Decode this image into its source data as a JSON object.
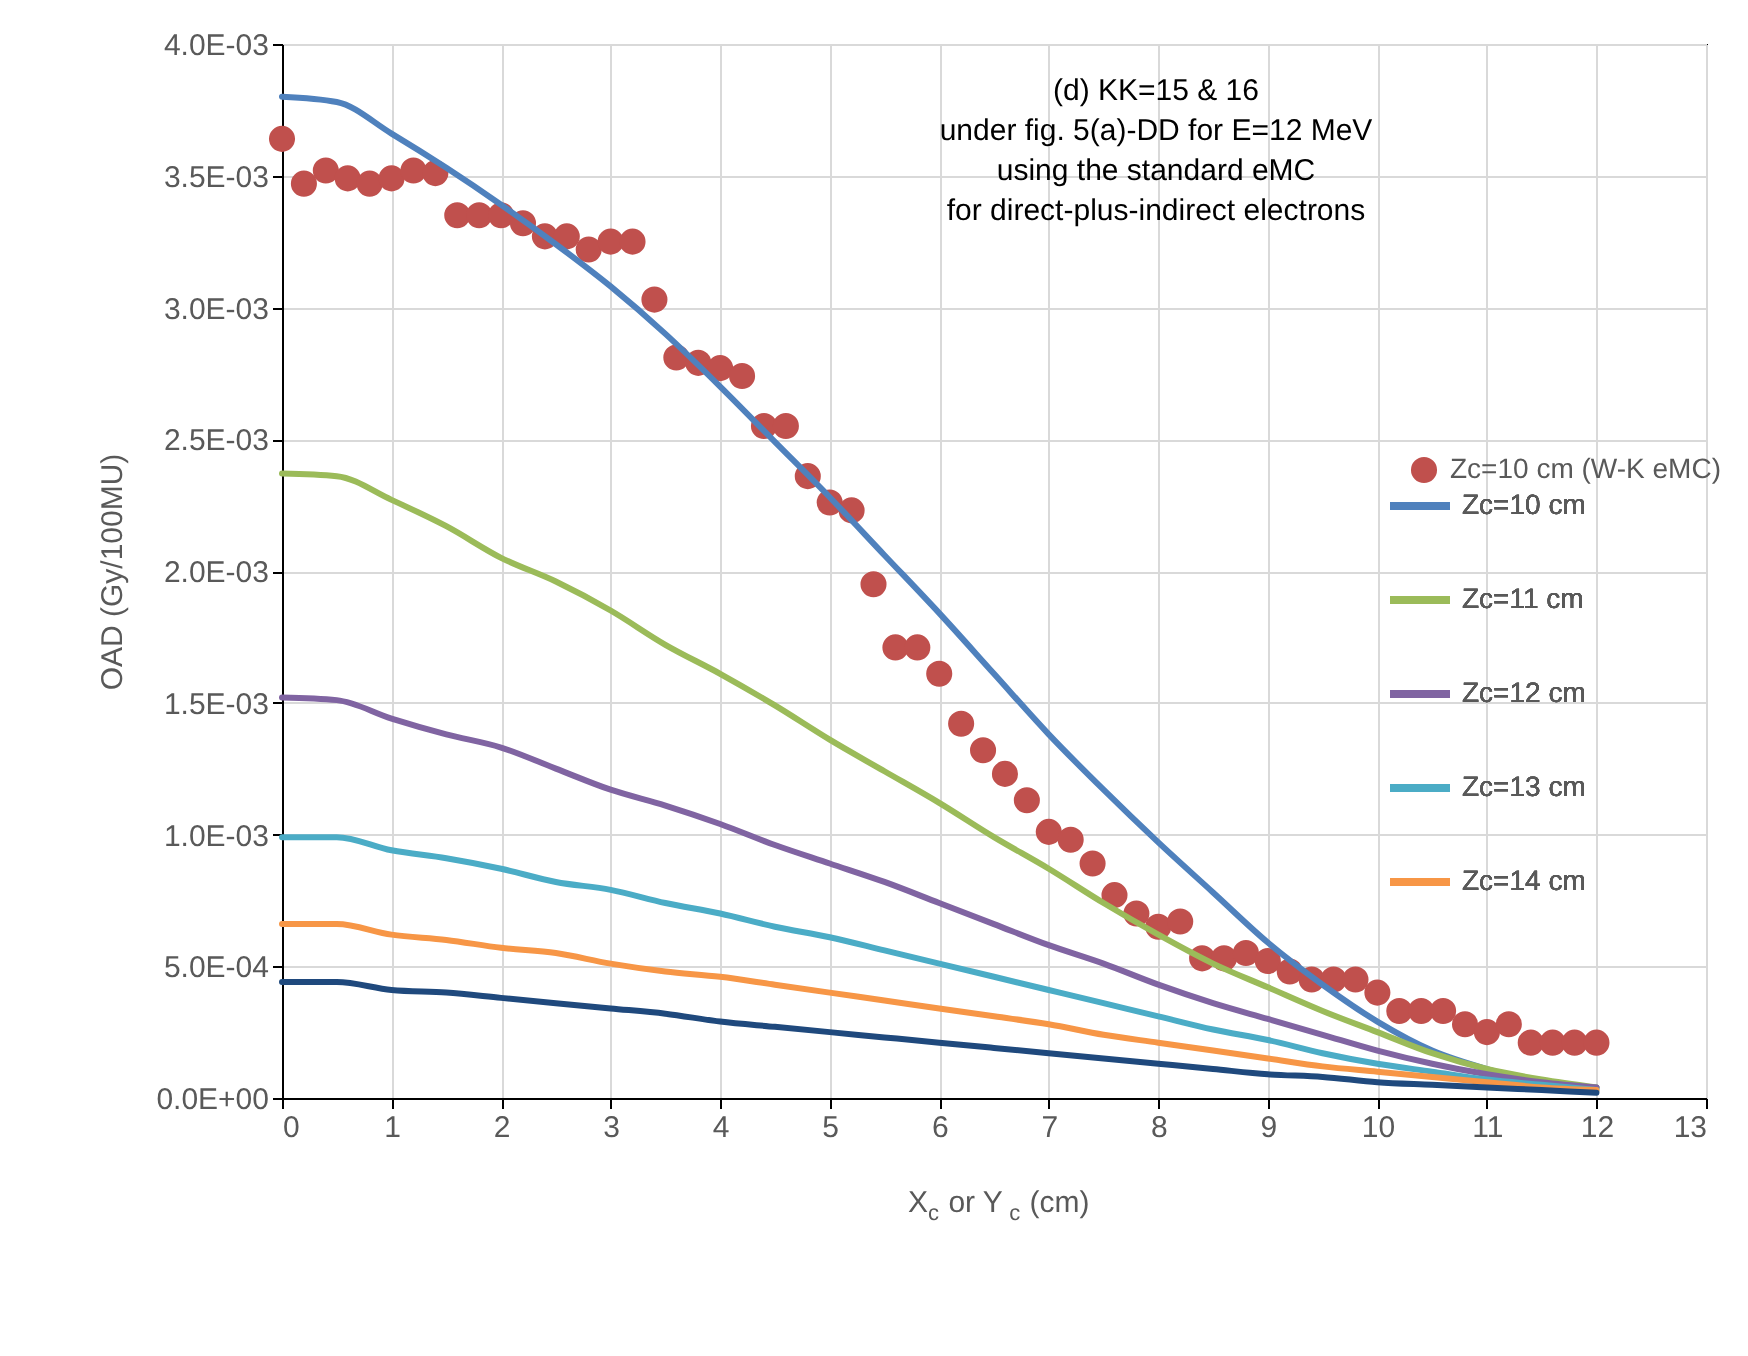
{
  "chart_data": {
    "type": "line",
    "title": "(d) KK=15 & 16\nunder fig. 5(a)-DD for E=12 MeV\nusing the standard eMC\nfor direct-plus-indirect electrons",
    "xlabel": "X$_{c}$ or Y$_{c}$ (cm)",
    "ylabel": "OAD (Gy/100MU)",
    "xlim": [
      0,
      13
    ],
    "xticks": [
      0,
      1,
      2,
      3,
      4,
      5,
      6,
      7,
      8,
      9,
      10,
      11,
      12,
      13
    ],
    "ylim": [
      0,
      0.004
    ],
    "yticks": [
      {
        "value": 0,
        "label": "0.0E+00"
      },
      {
        "value": 0.0005,
        "label": "5.0E-04"
      },
      {
        "value": 0.001,
        "label": "1.0E-03"
      },
      {
        "value": 0.0015,
        "label": "1.5E-03"
      },
      {
        "value": 0.002,
        "label": "2.0E-03"
      },
      {
        "value": 0.0025,
        "label": "2.5E-03"
      },
      {
        "value": 0.003,
        "label": "3.0E-03"
      },
      {
        "value": 0.0035,
        "label": "3.5E-03"
      },
      {
        "value": 0.004,
        "label": "4.0E-03"
      }
    ],
    "grid": true,
    "legend": "right",
    "series": [
      {
        "name": "Zc=10 cm (W-K eMC)",
        "type": "scatter",
        "marker": "circle",
        "color": "#c0504d",
        "x": [
          0,
          0.2,
          0.4,
          0.6,
          0.8,
          1.0,
          1.2,
          1.4,
          1.6,
          1.8,
          2.0,
          2.2,
          2.4,
          2.6,
          2.8,
          3.0,
          3.2,
          3.4,
          3.6,
          3.8,
          4.0,
          4.2,
          4.4,
          4.6,
          4.8,
          5.0,
          5.2,
          5.4,
          5.6,
          5.8,
          6.0,
          6.2,
          6.4,
          6.6,
          6.8,
          7.0,
          7.2,
          7.4,
          7.6,
          7.8,
          8.0,
          8.2,
          8.4,
          8.6,
          8.8,
          9.0,
          9.2,
          9.4,
          9.6,
          9.8,
          10.0,
          10.2,
          10.4,
          10.6,
          10.8,
          11.0,
          11.2,
          11.4,
          11.6,
          11.8,
          12.0
        ],
        "values": [
          0.00364,
          0.00347,
          0.00352,
          0.00349,
          0.00347,
          0.00349,
          0.00352,
          0.00351,
          0.00335,
          0.00335,
          0.00335,
          0.00332,
          0.00327,
          0.00327,
          0.00322,
          0.00325,
          0.00325,
          0.00303,
          0.00281,
          0.00279,
          0.00277,
          0.00274,
          0.00255,
          0.00255,
          0.00236,
          0.00226,
          0.00223,
          0.00195,
          0.00171,
          0.00171,
          0.00161,
          0.00142,
          0.00132,
          0.00123,
          0.00113,
          0.00101,
          0.00098,
          0.00089,
          0.00077,
          0.0007,
          0.00065,
          0.00067,
          0.00053,
          0.00053,
          0.00055,
          0.00052,
          0.00048,
          0.00045,
          0.00045,
          0.00045,
          0.0004,
          0.00033,
          0.00033,
          0.00033,
          0.00028,
          0.00025,
          0.00028,
          0.00021,
          0.00021,
          0.00021,
          0.00021
        ]
      },
      {
        "name": "Zc=10 cm",
        "line_style": "solid",
        "marker": "none",
        "color": "#4f81bd",
        "x": [
          0,
          0.5,
          1,
          1.5,
          2,
          2.5,
          3,
          3.5,
          4,
          4.5,
          5,
          5.5,
          6,
          6.5,
          7,
          7.5,
          8,
          8.5,
          9,
          9.5,
          10,
          10.5,
          11,
          11.5,
          12
        ],
        "values": [
          0.0038,
          0.00378,
          0.00366,
          0.00353,
          0.00339,
          0.00324,
          0.00308,
          0.0029,
          0.0027,
          0.00249,
          0.00228,
          0.00206,
          0.00184,
          0.00161,
          0.00138,
          0.00117,
          0.00097,
          0.00078,
          0.00059,
          0.00043,
          0.00029,
          0.00018,
          0.00011,
          6e-05,
          4e-05
        ]
      },
      {
        "name": "Zc=11 cm",
        "line_style": "solid",
        "marker": "none",
        "color": "#9bbb59",
        "x": [
          0,
          0.5,
          1,
          1.5,
          2,
          2.5,
          3,
          3.5,
          4,
          4.5,
          5,
          5.5,
          6,
          6.5,
          7,
          7.5,
          8,
          8.5,
          9,
          9.5,
          10,
          10.5,
          11,
          11.5,
          12
        ],
        "values": [
          0.00237,
          0.00236,
          0.00227,
          0.00217,
          0.00205,
          0.00196,
          0.00185,
          0.00172,
          0.00161,
          0.00149,
          0.00136,
          0.00124,
          0.00112,
          0.00099,
          0.00087,
          0.00074,
          0.00062,
          0.00051,
          0.00042,
          0.00033,
          0.00025,
          0.00017,
          0.00011,
          7e-05,
          4e-05
        ]
      },
      {
        "name": "Zc=12 cm",
        "line_style": "solid",
        "marker": "none",
        "color": "#8064a2",
        "x": [
          0,
          0.5,
          1,
          1.5,
          2,
          2.5,
          3,
          3.5,
          4,
          4.5,
          5,
          5.5,
          6,
          6.5,
          7,
          7.5,
          8,
          8.5,
          9,
          9.5,
          10,
          10.5,
          11,
          11.5,
          12
        ],
        "values": [
          0.00152,
          0.00151,
          0.00144,
          0.00138,
          0.00133,
          0.00125,
          0.00117,
          0.00111,
          0.00104,
          0.00096,
          0.00089,
          0.00082,
          0.00074,
          0.00066,
          0.00058,
          0.00051,
          0.00043,
          0.00036,
          0.0003,
          0.00024,
          0.00018,
          0.00013,
          9e-05,
          6e-05,
          4e-05
        ]
      },
      {
        "name": "Zc=13 cm",
        "line_style": "solid",
        "marker": "none",
        "color": "#4bacc6",
        "x": [
          0,
          0.5,
          1,
          1.5,
          2,
          2.5,
          3,
          3.5,
          4,
          4.5,
          5,
          5.5,
          6,
          6.5,
          7,
          7.5,
          8,
          8.5,
          9,
          9.5,
          10,
          10.5,
          11,
          11.5,
          12
        ],
        "values": [
          0.00099,
          0.00099,
          0.00094,
          0.00091,
          0.00087,
          0.00082,
          0.00079,
          0.00074,
          0.0007,
          0.00065,
          0.00061,
          0.00056,
          0.00051,
          0.00046,
          0.00041,
          0.00036,
          0.00031,
          0.00026,
          0.00022,
          0.00017,
          0.00013,
          0.0001,
          7e-05,
          5e-05,
          3e-05
        ]
      },
      {
        "name": "Zc=14 cm",
        "line_style": "solid",
        "marker": "none",
        "color": "#f79646",
        "x": [
          0,
          0.5,
          1,
          1.5,
          2,
          2.5,
          3,
          3.5,
          4,
          4.5,
          5,
          5.5,
          6,
          6.5,
          7,
          7.5,
          8,
          8.5,
          9,
          9.5,
          10,
          10.5,
          11,
          11.5,
          12
        ],
        "values": [
          0.00066,
          0.00066,
          0.00062,
          0.0006,
          0.00057,
          0.00055,
          0.00051,
          0.00048,
          0.00046,
          0.00043,
          0.0004,
          0.00037,
          0.00034,
          0.00031,
          0.00028,
          0.00024,
          0.00021,
          0.00018,
          0.00015,
          0.00012,
          0.0001,
          8e-05,
          6e-05,
          4e-05,
          3e-05
        ]
      },
      {
        "line_style": "solid",
        "marker": "none",
        "color": "#1f497d",
        "x": [
          0,
          0.5,
          1,
          1.5,
          2,
          2.5,
          3,
          3.5,
          4,
          4.5,
          5,
          5.5,
          6,
          6.5,
          7,
          7.5,
          8,
          8.5,
          9,
          9.5,
          10,
          10.5,
          11,
          11.5,
          12
        ],
        "values": [
          0.00044,
          0.00044,
          0.00041,
          0.0004,
          0.00038,
          0.00036,
          0.00034,
          0.00032,
          0.00029,
          0.00027,
          0.00025,
          0.00023,
          0.00021,
          0.00019,
          0.00017,
          0.00015,
          0.00013,
          0.00011,
          9e-05,
          8e-05,
          6e-05,
          5e-05,
          4e-05,
          3e-05,
          2e-05
        ]
      }
    ]
  }
}
